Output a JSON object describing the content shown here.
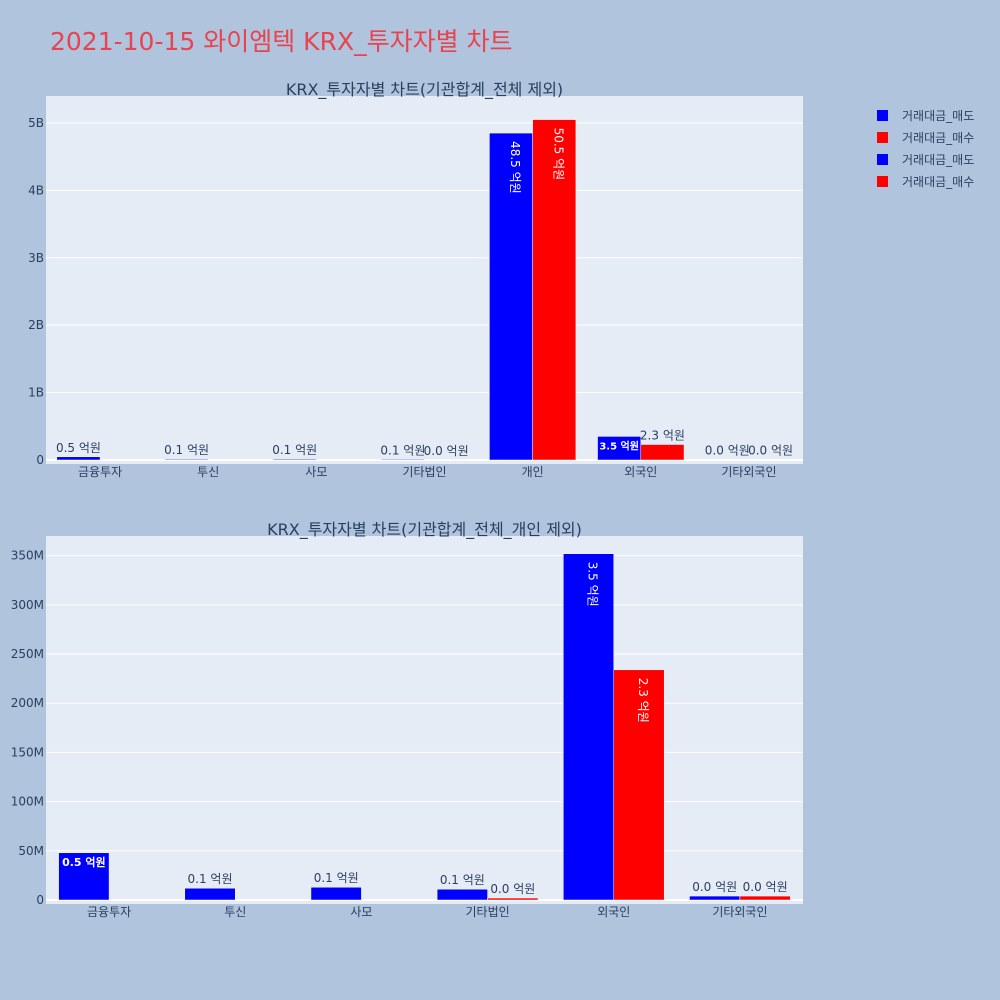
{
  "title": "2021-10-15 와이엠텍 KRX_투자자별 차트",
  "colors": {
    "sell": "#0000ff",
    "buy": "#ff0000",
    "plot_bg": "#e5ecf6",
    "page_bg": "#b0c4de",
    "title": "#e8434f"
  },
  "legend": [
    {
      "label": "거래대금_매도",
      "color": "#0000ff"
    },
    {
      "label": "거래대금_매수",
      "color": "#ff0000"
    },
    {
      "label": "거래대금_매도",
      "color": "#0000ff"
    },
    {
      "label": "거래대금_매수",
      "color": "#ff0000"
    }
  ],
  "chart_data": [
    {
      "type": "bar",
      "title": "KRX_투자자별 차트(기관합계_전체 제외)",
      "categories": [
        "금융투자",
        "투신",
        "사모",
        "기타법인",
        "개인",
        "외국인",
        "기타외국인"
      ],
      "series": [
        {
          "name": "거래대금_매도",
          "color": "#0000ff",
          "values": [
            48000000,
            12000000,
            13000000,
            11000000,
            4850000000,
            350000000,
            4000000
          ],
          "labels": [
            "0.5 억원",
            "0.1 억원",
            "0.1 억원",
            "0.1 억원",
            "48.5 억원",
            "3.5 억원",
            "0.0 억원"
          ]
        },
        {
          "name": "거래대금_매수",
          "color": "#ff0000",
          "values": [
            0,
            0,
            0,
            2000000,
            5050000000,
            230000000,
            4000000
          ],
          "labels": [
            "",
            "",
            "",
            "0.0 억원",
            "50.5 억원",
            "2.3 억원",
            "0.0 억원"
          ]
        }
      ],
      "ylim": [
        0,
        5400000000
      ],
      "yticks": [
        0,
        1000000000,
        2000000000,
        3000000000,
        4000000000,
        5000000000
      ],
      "ytick_labels": [
        "0",
        "1B",
        "2B",
        "3B",
        "4B",
        "5B"
      ],
      "grid": true
    },
    {
      "type": "bar",
      "title": "KRX_투자자별 차트(기관합계_전체_개인 제외)",
      "categories": [
        "금융투자",
        "투신",
        "사모",
        "기타법인",
        "외국인",
        "기타외국인"
      ],
      "series": [
        {
          "name": "거래대금_매도",
          "color": "#0000ff",
          "values": [
            48000000,
            12000000,
            13000000,
            11000000,
            352000000,
            4000000
          ],
          "labels": [
            "0.5 억원",
            "0.1 억원",
            "0.1 억원",
            "0.1 억원",
            "3.5 억원",
            "0.0 억원"
          ]
        },
        {
          "name": "거래대금_매수",
          "color": "#ff0000",
          "values": [
            0,
            0,
            0,
            2000000,
            234000000,
            4000000
          ],
          "labels": [
            "",
            "",
            "",
            "0.0 억원",
            "2.3 억원",
            "0.0 억원"
          ]
        }
      ],
      "ylim": [
        0,
        370000000
      ],
      "yticks": [
        0,
        50000000,
        100000000,
        150000000,
        200000000,
        250000000,
        300000000,
        350000000
      ],
      "ytick_labels": [
        "0",
        "50M",
        "100M",
        "150M",
        "200M",
        "250M",
        "300M",
        "350M"
      ],
      "grid": true
    }
  ]
}
